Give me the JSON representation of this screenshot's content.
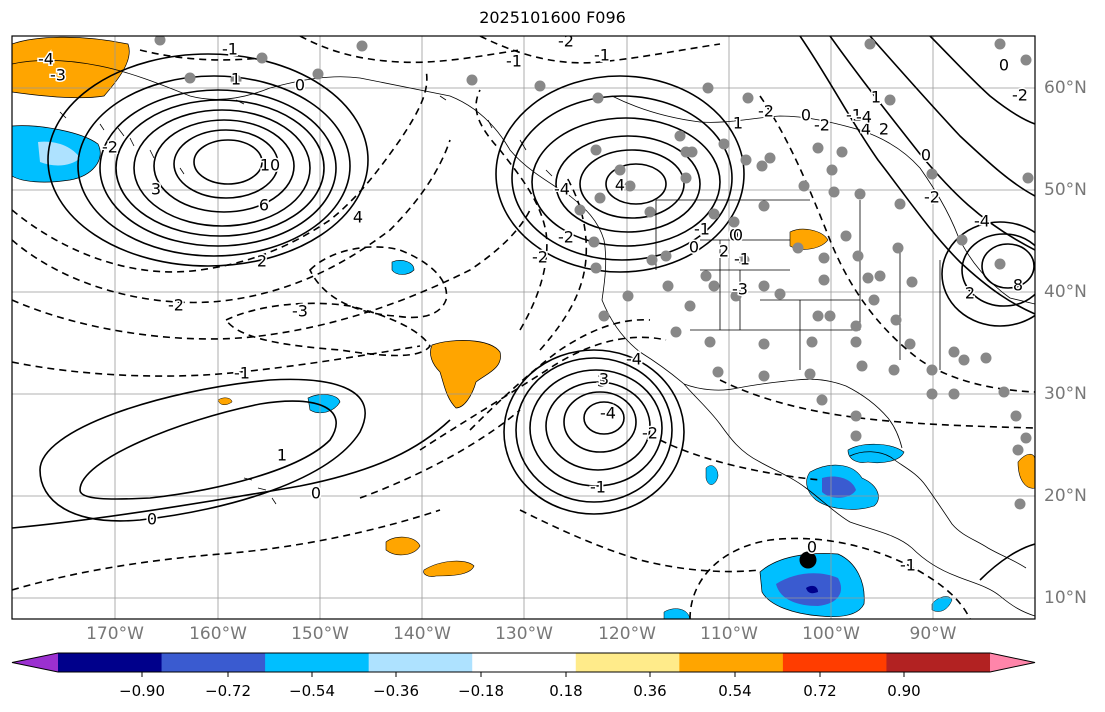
{
  "title": "2025101600 F096",
  "lon_labels": [
    "170°W",
    "160°W",
    "150°W",
    "140°W",
    "130°W",
    "120°W",
    "110°W",
    "100°W",
    "90°W"
  ],
  "lat_labels": [
    "60°N",
    "50°N",
    "40°N",
    "30°N",
    "20°N",
    "10°N"
  ],
  "contour_labels": [
    "-2",
    "-1",
    "-4",
    "-3",
    "-2",
    "-1",
    "0",
    "1",
    "3",
    "10",
    "6",
    "4",
    "2",
    "-2",
    "-3",
    "-1",
    "1",
    "0",
    "0",
    "4",
    "-1",
    "-2",
    "1",
    "-4",
    "-2",
    "0",
    "3",
    "-4",
    "-2",
    "-1",
    "0",
    "-2",
    "-1",
    "0",
    "4",
    "-2",
    "2",
    "-4",
    "8",
    "0",
    "2",
    "-1",
    "-4",
    "0",
    "-1",
    "3",
    "-3",
    "-2",
    "-4",
    "1",
    "2",
    "0",
    "-1",
    "0",
    "-2"
  ],
  "colorbar": {
    "ticks": [
      "−0.90",
      "−0.72",
      "−0.54",
      "−0.36",
      "−0.18",
      "0.18",
      "0.36",
      "0.54",
      "0.72",
      "0.90"
    ],
    "colors": [
      "#9b30d0",
      "#00008b",
      "#3a5bd0",
      "#00bfff",
      "#aee2ff",
      "#ffffff",
      "#ffeb8a",
      "#ffa500",
      "#ff3d00",
      "#b22222",
      "#ff85aa"
    ]
  },
  "colors": {
    "warm": "#ffa500",
    "cool_light": "#aee2ff",
    "cool": "#00bfff",
    "cool_dark": "#3a5bd0",
    "grid": "#999999",
    "dots": "#888888"
  }
}
